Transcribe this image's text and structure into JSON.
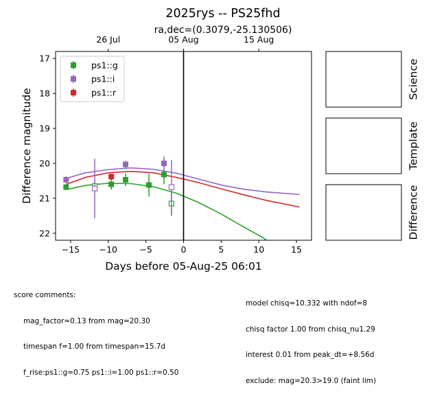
{
  "chart_data": {
    "type": "scatter",
    "title": "2025rys -- PS25fhd",
    "subtitle": "ra,dec=(0.3079,-25.130506)",
    "xlabel": "Days before 05-Aug-25 06:01",
    "ylabel": "Difference magnitude",
    "xlim": [
      -17,
      17
    ],
    "ylim": [
      22.2,
      16.8
    ],
    "y_inverted": true,
    "x_ticks": [
      -15,
      -10,
      -5,
      0,
      5,
      10,
      15
    ],
    "y_ticks": [
      17,
      18,
      19,
      20,
      21,
      22
    ],
    "top_axis_ticks": [
      {
        "x": -10,
        "label": "26 Jul"
      },
      {
        "x": 0,
        "label": "05 Aug"
      },
      {
        "x": 10,
        "label": "15 Aug"
      }
    ],
    "vertical_line_x": 0,
    "legend_position": "top-left",
    "series": [
      {
        "name": "ps1::g",
        "color": "#2ca02c",
        "detections": [
          {
            "x": -15.6,
            "y": 20.68,
            "err": 0.08
          },
          {
            "x": -9.6,
            "y": 20.6,
            "err": 0.15
          },
          {
            "x": -7.7,
            "y": 20.47,
            "err": 0.18
          },
          {
            "x": -4.6,
            "y": 20.62,
            "err": 0.33
          },
          {
            "x": -2.6,
            "y": 20.32,
            "err": 0.28
          }
        ],
        "nondetections": [
          {
            "x": -11.8,
            "y": 20.65,
            "err": 0.12
          },
          {
            "x": -1.6,
            "y": 21.15,
            "err": 0.35
          }
        ],
        "model": [
          {
            "x": -15.6,
            "y": 20.75
          },
          {
            "x": -13,
            "y": 20.63
          },
          {
            "x": -10,
            "y": 20.57
          },
          {
            "x": -7,
            "y": 20.58
          },
          {
            "x": -4,
            "y": 20.67
          },
          {
            "x": -1,
            "y": 20.85
          },
          {
            "x": 2,
            "y": 21.12
          },
          {
            "x": 5,
            "y": 21.45
          },
          {
            "x": 8,
            "y": 21.82
          },
          {
            "x": 10.5,
            "y": 22.12
          },
          {
            "x": 11.4,
            "y": 22.25
          }
        ]
      },
      {
        "name": "ps1::i",
        "color": "#9467bd",
        "detections": [
          {
            "x": -15.6,
            "y": 20.47,
            "err": 0.1
          },
          {
            "x": -7.7,
            "y": 20.03,
            "err": 0.1
          },
          {
            "x": -2.6,
            "y": 20.0,
            "err": 0.2
          }
        ],
        "nondetections": [
          {
            "x": -11.8,
            "y": 20.72,
            "err": 0.85
          },
          {
            "x": -1.6,
            "y": 20.68,
            "err": 0.78
          }
        ],
        "model": [
          {
            "x": -15.6,
            "y": 20.43
          },
          {
            "x": -13,
            "y": 20.27
          },
          {
            "x": -10,
            "y": 20.18
          },
          {
            "x": -7,
            "y": 20.13
          },
          {
            "x": -4,
            "y": 20.17
          },
          {
            "x": -1,
            "y": 20.28
          },
          {
            "x": 2,
            "y": 20.45
          },
          {
            "x": 5,
            "y": 20.62
          },
          {
            "x": 8,
            "y": 20.74
          },
          {
            "x": 11,
            "y": 20.82
          },
          {
            "x": 15.4,
            "y": 20.89
          }
        ]
      },
      {
        "name": "ps1::r",
        "color": "#d62728",
        "detections": [
          {
            "x": -9.6,
            "y": 20.38,
            "err": 0.08
          }
        ],
        "nondetections": [],
        "model": [
          {
            "x": -15.6,
            "y": 20.6
          },
          {
            "x": -13,
            "y": 20.4
          },
          {
            "x": -10,
            "y": 20.27
          },
          {
            "x": -7,
            "y": 20.23
          },
          {
            "x": -4,
            "y": 20.27
          },
          {
            "x": -1,
            "y": 20.4
          },
          {
            "x": 2,
            "y": 20.55
          },
          {
            "x": 5,
            "y": 20.73
          },
          {
            "x": 8,
            "y": 20.9
          },
          {
            "x": 11,
            "y": 21.06
          },
          {
            "x": 15.4,
            "y": 21.25
          }
        ]
      }
    ]
  },
  "stamps": [
    "Science",
    "Template",
    "Difference"
  ],
  "comments_header": "score comments:",
  "comments_left": [
    "mag_factor=0.13 from mag=20.30",
    "timespan f=1.00 from timespan=15.7d",
    "f_rise:ps1::g=0.75 ps1::i=1.00 ps1::r=0.50"
  ],
  "comments_right": [
    "model chisq=10.332 with ndof=8",
    "chisq factor 1.00 from chisq_nu1.29",
    "interest 0.01 from peak_dt=+8.56d",
    "exclude: mag=20.3>19.0 (faint lim)"
  ]
}
